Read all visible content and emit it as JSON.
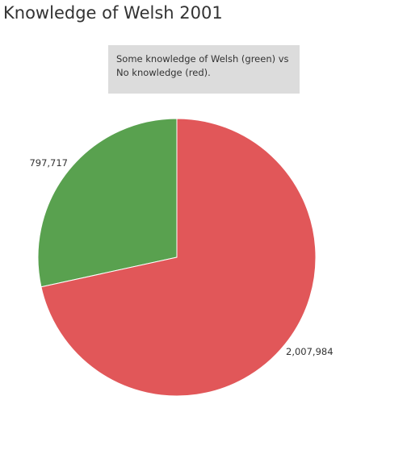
{
  "chart_data": {
    "type": "pie",
    "title": "Knowledge of Welsh 2001",
    "annotation_lines": [
      "Some knowledge of Welsh (green) vs",
      "No knowledge (red)."
    ],
    "categories": [
      "Some knowledge of Welsh",
      "No knowledge"
    ],
    "values": [
      797717,
      2007984
    ],
    "labels": [
      "797,717",
      "2,007,984"
    ],
    "colors": [
      "#59a14f",
      "#e15759"
    ],
    "start_angle_deg": 0,
    "direction": "counterclockwise",
    "legend": "none"
  }
}
